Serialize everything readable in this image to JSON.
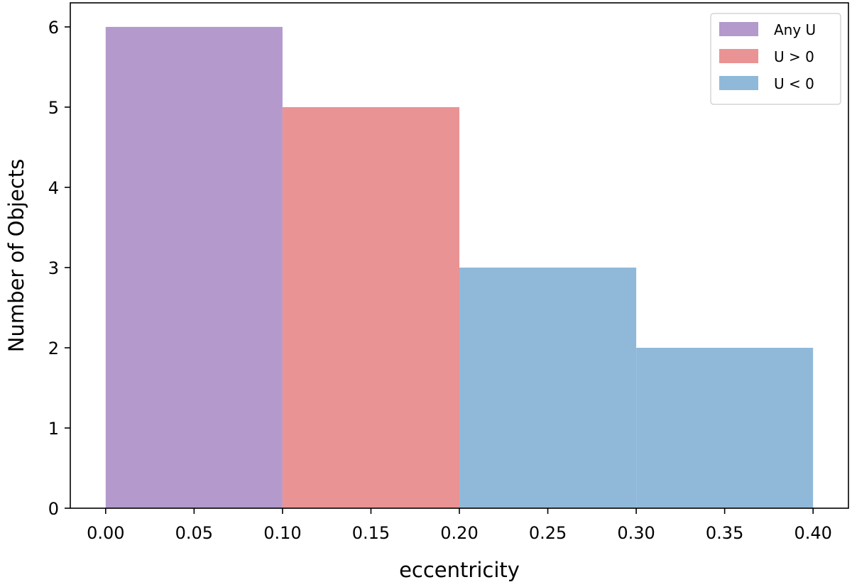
{
  "chart_data": {
    "type": "bar",
    "bin_edges": [
      0.0,
      0.1,
      0.2,
      0.3,
      0.4
    ],
    "series": [
      {
        "name": "Any U",
        "color": "#b399cc",
        "bins": [
          {
            "x0": 0.0,
            "x1": 0.1,
            "value": 6
          }
        ]
      },
      {
        "name": "U > 0",
        "color": "#ea9394",
        "bins": [
          {
            "x0": 0.1,
            "x1": 0.2,
            "value": 5
          }
        ]
      },
      {
        "name": "U < 0",
        "color": "#90b9d9",
        "bins": [
          {
            "x0": 0.2,
            "x1": 0.3,
            "value": 3
          },
          {
            "x0": 0.3,
            "x1": 0.4,
            "value": 2
          }
        ]
      }
    ],
    "xlabel": "eccentricity",
    "ylabel": "Number of Objects",
    "xlim": [
      -0.02,
      0.42
    ],
    "ylim": [
      0,
      6.3
    ],
    "xticks": [
      "0.00",
      "0.05",
      "0.10",
      "0.15",
      "0.20",
      "0.25",
      "0.30",
      "0.35",
      "0.40"
    ],
    "yticks": [
      "0",
      "1",
      "2",
      "3",
      "4",
      "5",
      "6"
    ],
    "legend_position": "top-right",
    "grid": false
  }
}
